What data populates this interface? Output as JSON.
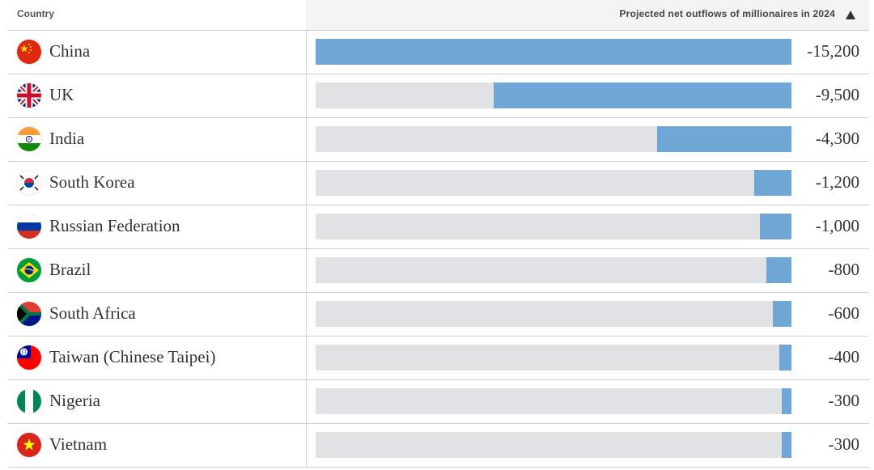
{
  "header": {
    "country_label": "Country",
    "metric_label": "Projected net outflows of millionaires in 2024",
    "sort_icon": "sort-ascending-triangle-icon"
  },
  "colors": {
    "bar": "#6fa6d6",
    "track": "#e1e2e3",
    "header_bg": "#f2f3f3"
  },
  "chart_data": {
    "type": "bar",
    "orientation": "horizontal",
    "title": "",
    "xlabel": "Projected net outflows of millionaires in 2024",
    "ylabel": "Country",
    "xlim": [
      -15200,
      0
    ],
    "categories": [
      "China",
      "UK",
      "India",
      "South Korea",
      "Russian Federation",
      "Brazil",
      "South Africa",
      "Taiwan (Chinese Taipei)",
      "Nigeria",
      "Vietnam"
    ],
    "values": [
      -15200,
      -9500,
      -4300,
      -1200,
      -1000,
      -800,
      -600,
      -400,
      -300,
      -300
    ],
    "value_labels": [
      "-15,200",
      "-9,500",
      "-4,300",
      "-1,200",
      "-1,000",
      "-800",
      "-600",
      "-400",
      "-300",
      "-300"
    ],
    "flags": [
      "china-flag-icon",
      "uk-flag-icon",
      "india-flag-icon",
      "south-korea-flag-icon",
      "russia-flag-icon",
      "brazil-flag-icon",
      "south-africa-flag-icon",
      "taiwan-flag-icon",
      "nigeria-flag-icon",
      "vietnam-flag-icon"
    ]
  }
}
